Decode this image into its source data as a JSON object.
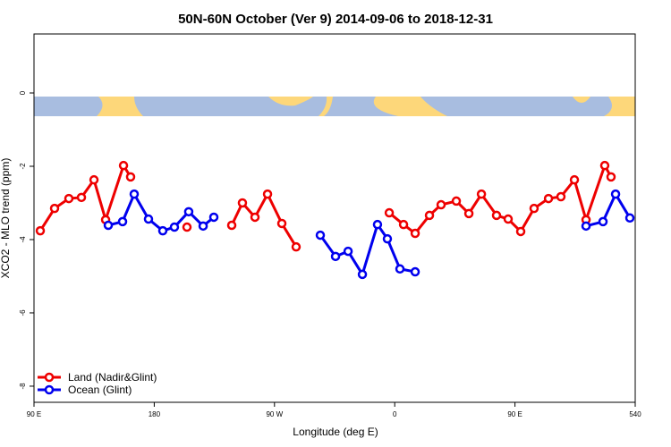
{
  "chart_data": {
    "type": "line",
    "title": "50N-60N October (Ver 9)   2014-09-06 to 2018-12-31",
    "x_label": "Longitude (deg E)",
    "y_label": "XCO2 - MLO trend (ppm)",
    "xlim": [
      90,
      540
    ],
    "ylim": [
      -8.44,
      1.61
    ],
    "xticks": [
      {
        "value": 90,
        "label": "90 E"
      },
      180,
      {
        "value": 270,
        "label": "90 W"
      },
      {
        "value": 360,
        "label": "0"
      },
      {
        "value": 450,
        "label": "90 E"
      },
      540
    ],
    "yticks": [
      0,
      -2,
      -4,
      -6,
      -8
    ],
    "legend": "bottomleft",
    "series": [
      {
        "name": "Land (Nadir&Glint)",
        "color": "#ee0000",
        "x": [
          94.7,
          105.4,
          116.1,
          125.5,
          134.9,
          143.6,
          157.0,
          162.3,
          null,
          204.5,
          null,
          238.0,
          246.0,
          255.4,
          264.8,
          275.5,
          286.2,
          null,
          355.9,
          366.6,
          375.3,
          386.0,
          394.7,
          406.1,
          415.5,
          424.9,
          436.2,
          444.9,
          454.3,
          464.3,
          475.1,
          484.4,
          494.5,
          503.2,
          517.2,
          521.9
        ],
        "values": [
          -3.76,
          -3.15,
          -2.88,
          -2.85,
          -2.37,
          -3.46,
          -1.98,
          -2.29,
          null,
          -3.66,
          null,
          -3.61,
          -3.0,
          -3.39,
          -2.76,
          -3.56,
          -4.2,
          null,
          -3.27,
          -3.59,
          -3.83,
          -3.34,
          -3.05,
          -2.95,
          -3.29,
          -2.76,
          -3.34,
          -3.44,
          -3.78,
          -3.15,
          -2.88,
          -2.83,
          -2.37,
          -3.46,
          -1.98,
          -2.29
        ]
      },
      {
        "name": "Ocean (Glint)",
        "color": "#0000ee",
        "x": [
          145.6,
          156.3,
          165.0,
          175.7,
          186.4,
          195.1,
          205.8,
          216.6,
          224.6,
          null,
          304.3,
          315.7,
          325.1,
          335.8,
          347.1,
          354.5,
          363.9,
          375.3,
          null,
          503.2,
          515.9,
          525.3,
          536.0
        ],
        "values": [
          -3.61,
          -3.51,
          -2.76,
          -3.44,
          -3.76,
          -3.66,
          -3.24,
          -3.63,
          -3.39,
          null,
          -3.88,
          -4.46,
          -4.32,
          -4.95,
          -3.59,
          -3.98,
          -4.8,
          -4.88,
          null,
          -3.63,
          -3.51,
          -2.76,
          -3.41
        ]
      }
    ]
  }
}
